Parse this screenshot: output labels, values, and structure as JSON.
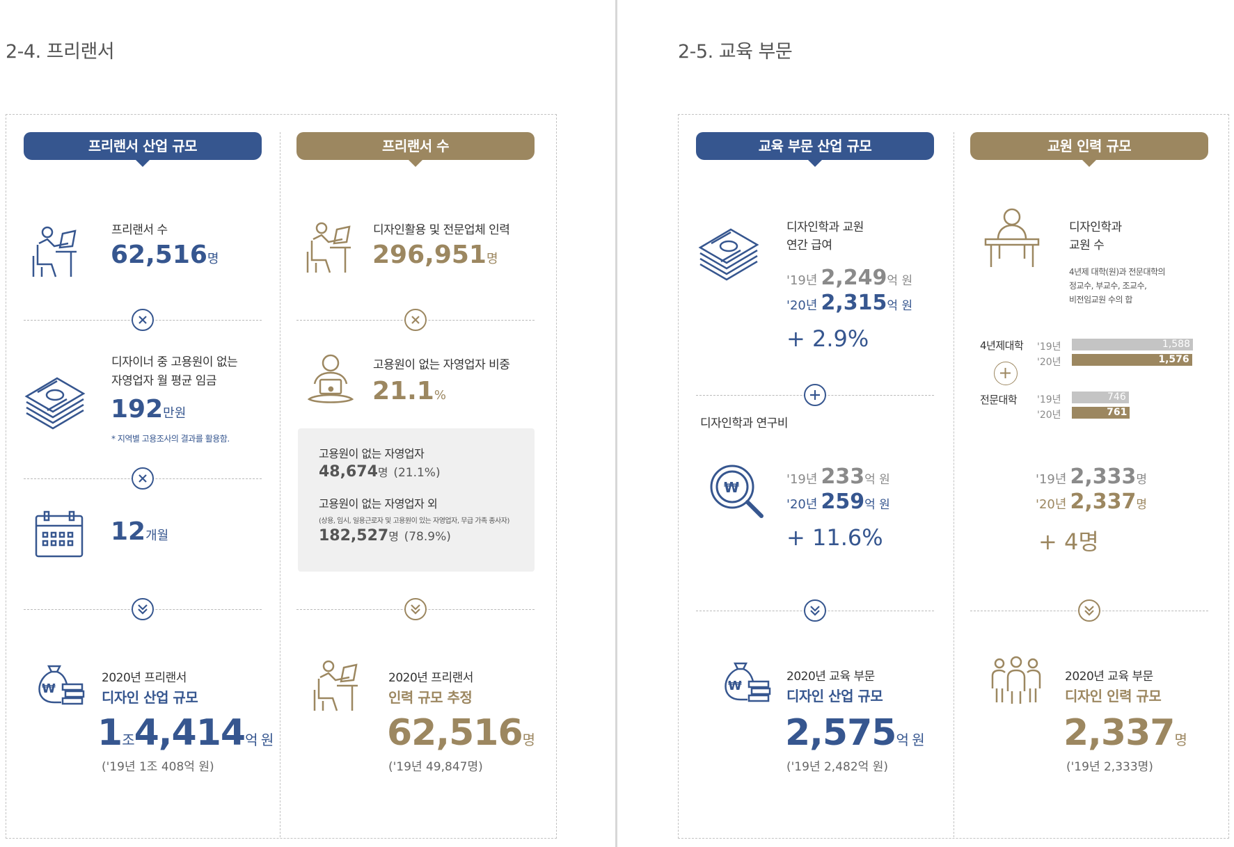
{
  "left": {
    "section_title": "2-4. 프리랜서",
    "col1": {
      "ribbon": "프리랜서 산업 규모",
      "item1": {
        "label": "프리랜서 수",
        "value": "62,516",
        "unit": "명"
      },
      "item2": {
        "label1": "디자이너 중 고용원이 없는",
        "label2": "자영업자 월 평균 임금",
        "value": "192",
        "unit": "만원",
        "note": "* 지역별 고용조사의 결과를 활용함."
      },
      "item3": {
        "value": "12",
        "unit": "개월"
      },
      "result": {
        "line1": "2020년 프리랜서",
        "line2": "디자인 산업 규모",
        "value_a": "1",
        "unit_a": "조",
        "value_b": "4,414",
        "unit_b": "억 원",
        "prev": "('19년 1조 408억 원)"
      }
    },
    "col2": {
      "ribbon": "프리랜서 수",
      "item1": {
        "label": "디자인활용 및 전문업체 인력",
        "value": "296,951",
        "unit": "명"
      },
      "item2": {
        "label": "고용원이 없는 자영업자 비중",
        "value": "21.1",
        "unit": "%"
      },
      "box": {
        "l1": "고용원이 없는 자영업자",
        "v1": "48,674",
        "u1": "명",
        "p1": "(21.1%)",
        "l2": "고용원이 없는 자영업자 외",
        "l2_note": "(상용, 임시, 일용근로자 및 고용원이 있는 자영업자, 무급 가족 종사자)",
        "v2": "182,527",
        "u2": "명",
        "p2": "(78.9%)"
      },
      "result": {
        "line1": "2020년 프리랜서",
        "line2": "인력 규모 추정",
        "value": "62,516",
        "unit": "명",
        "prev": "('19년 49,847명)"
      }
    }
  },
  "right": {
    "section_title": "2-5. 교육 부문",
    "col1": {
      "ribbon": "교육 부문 산업 규모",
      "item1": {
        "label1": "디자인학과 교원",
        "label2": "연간 급여",
        "y19": "'19년",
        "v19": "2,249",
        "u19": "억 원",
        "y20": "'20년",
        "v20": "2,315",
        "u20": "억 원",
        "growth": "+ 2.9%"
      },
      "item2": {
        "label": "디자인학과 연구비",
        "y19": "'19년",
        "v19": "233",
        "u19": "억 원",
        "y20": "'20년",
        "v20": "259",
        "u20": "억 원",
        "growth": "+ 11.6%"
      },
      "result": {
        "line1": "2020년 교육 부문",
        "line2": "디자인 산업 규모",
        "value": "2,575",
        "unit": "억 원",
        "prev": "('19년 2,482억 원)"
      }
    },
    "col2": {
      "ribbon": "교원 인력 규모",
      "item1": {
        "label1": "디자인학과",
        "label2": "교원 수",
        "note1": "4년제 대학(원)과 전문대학의",
        "note2": "정교수, 부교수, 조교수,",
        "note3": "비전임교원 수의 합"
      },
      "bars": {
        "g1": "4년제대학",
        "g2": "전문대학",
        "y19": "'19년",
        "y20": "'20년",
        "univ19": 1588,
        "univ19_label": "1,588",
        "univ20": 1576,
        "univ20_label": "1,576",
        "col19": 746,
        "col19_label": "746",
        "col20": 761,
        "col20_label": "761",
        "c19": "#c4c4c4",
        "c20": "#9c8760"
      },
      "total": {
        "y19": "'19년",
        "v19": "2,333",
        "u19": "명",
        "y20": "'20년",
        "v20": "2,337",
        "u20": "명",
        "growth": "+ 4명"
      },
      "result": {
        "line1": "2020년 교육 부문",
        "line2": "디자인 인력 규모",
        "value": "2,337",
        "unit": "명",
        "prev": "('19년 2,333명)"
      }
    }
  }
}
